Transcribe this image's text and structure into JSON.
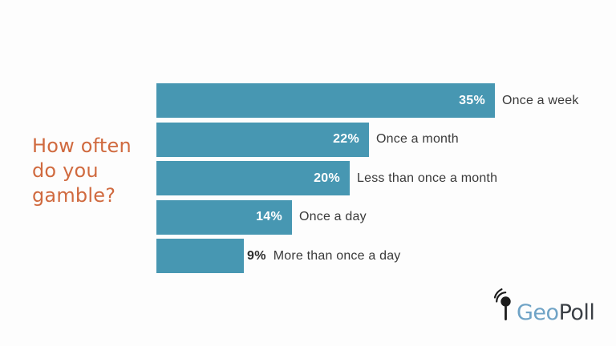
{
  "title": "How often\ndo you\ngamble?",
  "chart_data": {
    "type": "bar",
    "orientation": "horizontal",
    "title": "How often do you gamble?",
    "categories": [
      "Once a week",
      "Once a month",
      "Less than once a month",
      "Once a day",
      "More than once a day"
    ],
    "values": [
      35,
      22,
      20,
      14,
      9
    ],
    "value_labels": [
      "35%",
      "22%",
      "20%",
      "14%",
      "9%"
    ],
    "value_label_inside": [
      true,
      true,
      true,
      true,
      false
    ],
    "xlim": [
      0,
      35
    ],
    "bar_color": "#4797b2",
    "title_color": "#d06a3f",
    "label_color": "#3a3a3a",
    "grid": false,
    "legend": false
  },
  "logo": {
    "geo": "Geo",
    "poll": "Poll"
  }
}
